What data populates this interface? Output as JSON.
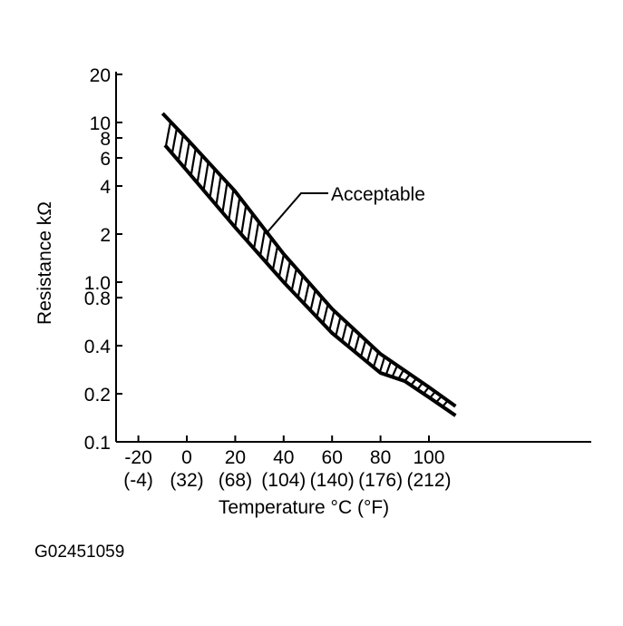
{
  "chart_data": {
    "type": "area",
    "xlabel": "Temperature °C (°F)",
    "ylabel": "Resistance kΩ",
    "x_ticks": [
      {
        "value": -20,
        "label": "-20",
        "sub": "(-4)"
      },
      {
        "value": 0,
        "label": "0",
        "sub": "(32)"
      },
      {
        "value": 20,
        "label": "20",
        "sub": "(68)"
      },
      {
        "value": 40,
        "label": "40",
        "sub": "(104)"
      },
      {
        "value": 60,
        "label": "60",
        "sub": "(140)"
      },
      {
        "value": 80,
        "label": "80",
        "sub": "(176)"
      },
      {
        "value": 100,
        "label": "100",
        "sub": "(212)"
      }
    ],
    "y_scale": "log",
    "ylim": [
      0.1,
      20
    ],
    "y_ticks": [
      {
        "value": 20,
        "label": "20"
      },
      {
        "value": 10,
        "label": "10"
      },
      {
        "value": 8,
        "label": "8"
      },
      {
        "value": 6,
        "label": "6"
      },
      {
        "value": 4,
        "label": "4"
      },
      {
        "value": 2,
        "label": "2"
      },
      {
        "value": 1,
        "label": "1.0"
      },
      {
        "value": 0.8,
        "label": "0.8"
      },
      {
        "value": 0.4,
        "label": "0.4"
      },
      {
        "value": 0.2,
        "label": "0.2"
      },
      {
        "value": 0.1,
        "label": "0.1"
      }
    ],
    "band": {
      "name": "Acceptable",
      "upper": {
        "x": [
          -10,
          0,
          20,
          40,
          60,
          80,
          100,
          111
        ],
        "y": [
          11.4,
          7.9,
          3.7,
          1.5,
          0.68,
          0.355,
          0.22,
          0.167
        ]
      },
      "lower": {
        "x": [
          -9,
          0,
          20,
          40,
          60,
          80,
          90,
          100,
          111
        ],
        "y": [
          7.2,
          5.0,
          2.2,
          1.0,
          0.48,
          0.27,
          0.24,
          0.19,
          0.146
        ]
      }
    },
    "annotation": "Acceptable",
    "grid": false
  },
  "figure_code": "G02451059"
}
